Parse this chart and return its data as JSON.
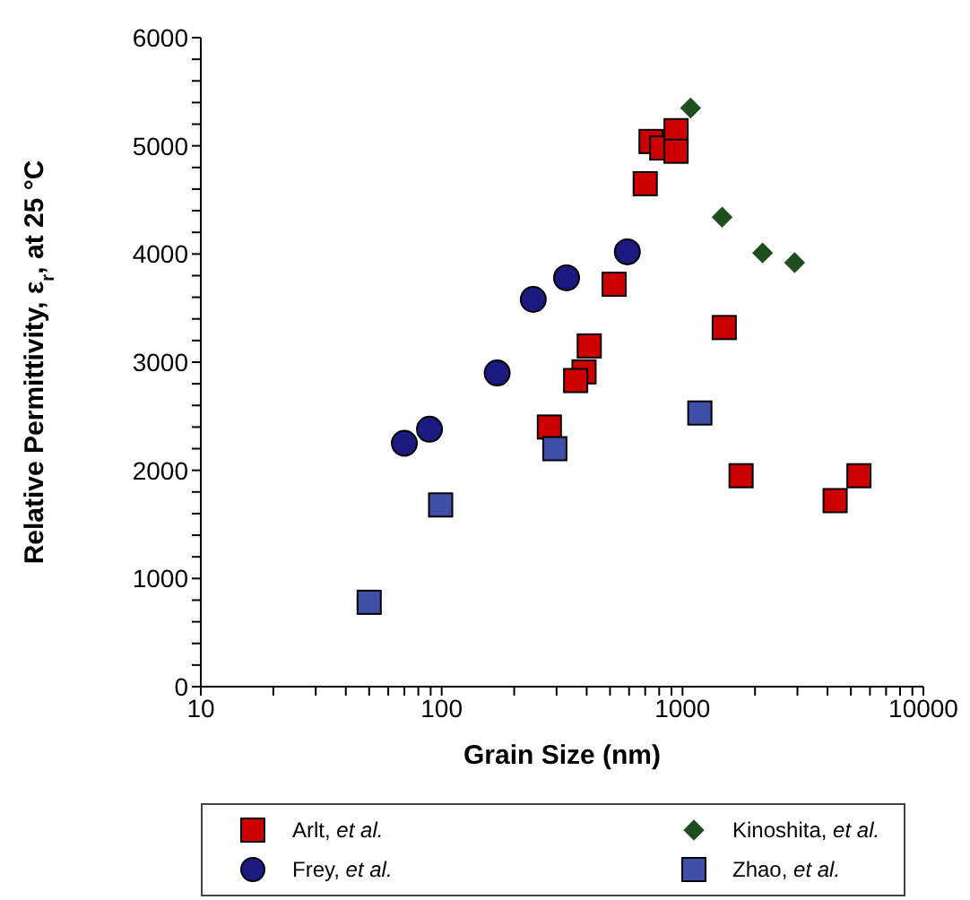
{
  "chart_data": {
    "type": "scatter",
    "xlabel": "Grain Size (nm)",
    "ylabel": "Relative Permittivity, ε$_{r}$, at 25 °C",
    "log": "x",
    "xlim": [
      10,
      10000
    ],
    "ylim": [
      0,
      6000
    ],
    "xticks": [
      10,
      {
        "value": 20,
        "label": null
      },
      {
        "value": 30,
        "label": null
      },
      {
        "value": 40,
        "label": null
      },
      {
        "value": 50,
        "label": null
      },
      {
        "value": 60,
        "label": null
      },
      {
        "value": 70,
        "label": null
      },
      {
        "value": 80,
        "label": null
      },
      {
        "value": 90,
        "label": null
      },
      100,
      {
        "value": 200,
        "label": null
      },
      {
        "value": 300,
        "label": null
      },
      {
        "value": 400,
        "label": null
      },
      {
        "value": 500,
        "label": null
      },
      {
        "value": 600,
        "label": null
      },
      {
        "value": 700,
        "label": null
      },
      {
        "value": 800,
        "label": null
      },
      {
        "value": 900,
        "label": null
      },
      1000,
      {
        "value": 2000,
        "label": null
      },
      {
        "value": 3000,
        "label": null
      },
      {
        "value": 4000,
        "label": null
      },
      {
        "value": 5000,
        "label": null
      },
      {
        "value": 6000,
        "label": null
      },
      {
        "value": 7000,
        "label": null
      },
      {
        "value": 8000,
        "label": null
      },
      {
        "value": 9000,
        "label": null
      },
      10000
    ],
    "yticks": [
      0,
      {
        "value": 200,
        "label": null
      },
      {
        "value": 400,
        "label": null
      },
      {
        "value": 600,
        "label": null
      },
      {
        "value": 800,
        "label": null
      },
      1000,
      {
        "value": 1200,
        "label": null
      },
      {
        "value": 1400,
        "label": null
      },
      {
        "value": 1600,
        "label": null
      },
      {
        "value": 1800,
        "label": null
      },
      2000,
      {
        "value": 2200,
        "label": null
      },
      {
        "value": 2400,
        "label": null
      },
      {
        "value": 2600,
        "label": null
      },
      {
        "value": 2800,
        "label": null
      },
      3000,
      {
        "value": 3200,
        "label": null
      },
      {
        "value": 3400,
        "label": null
      },
      {
        "value": 3600,
        "label": null
      },
      {
        "value": 3800,
        "label": null
      },
      4000,
      {
        "value": 4200,
        "label": null
      },
      {
        "value": 4400,
        "label": null
      },
      {
        "value": 4600,
        "label": null
      },
      {
        "value": 4800,
        "label": null
      },
      5000,
      {
        "value": 5200,
        "label": null
      },
      {
        "value": 5400,
        "label": null
      },
      {
        "value": 5600,
        "label": null
      },
      {
        "value": 5800,
        "label": null
      },
      6000
    ],
    "grid": false,
    "legend": "bottom",
    "series": [
      {
        "name": "Arlt, et al.",
        "color": "#cc0000",
        "marker": "square",
        "x": [
          700,
          740,
          820,
          940,
          940,
          520,
          1490,
          410,
          390,
          360,
          280,
          1750,
          4300,
          5400
        ],
        "values": [
          4650,
          5040,
          4980,
          5140,
          4950,
          3720,
          3320,
          3150,
          2910,
          2830,
          2400,
          1950,
          1720,
          1950
        ]
      },
      {
        "name": "Frey, et al.",
        "color": "#1a1a80",
        "marker": "circle",
        "x": [
          70,
          89,
          170,
          240,
          330,
          590
        ],
        "values": [
          2250,
          2380,
          2900,
          3580,
          3780,
          4020
        ]
      },
      {
        "name": "Kinoshita, et al.",
        "color": "#1e4d1e",
        "marker": "diamond",
        "x": [
          1080,
          1460,
          2150,
          2920
        ],
        "values": [
          5350,
          4340,
          4010,
          3920
        ]
      },
      {
        "name": "Zhao, et al.",
        "color": "#3f4fa8",
        "marker": "square",
        "x": [
          50,
          99,
          295,
          1180
        ],
        "values": [
          780,
          1680,
          2200,
          2530
        ]
      }
    ]
  }
}
